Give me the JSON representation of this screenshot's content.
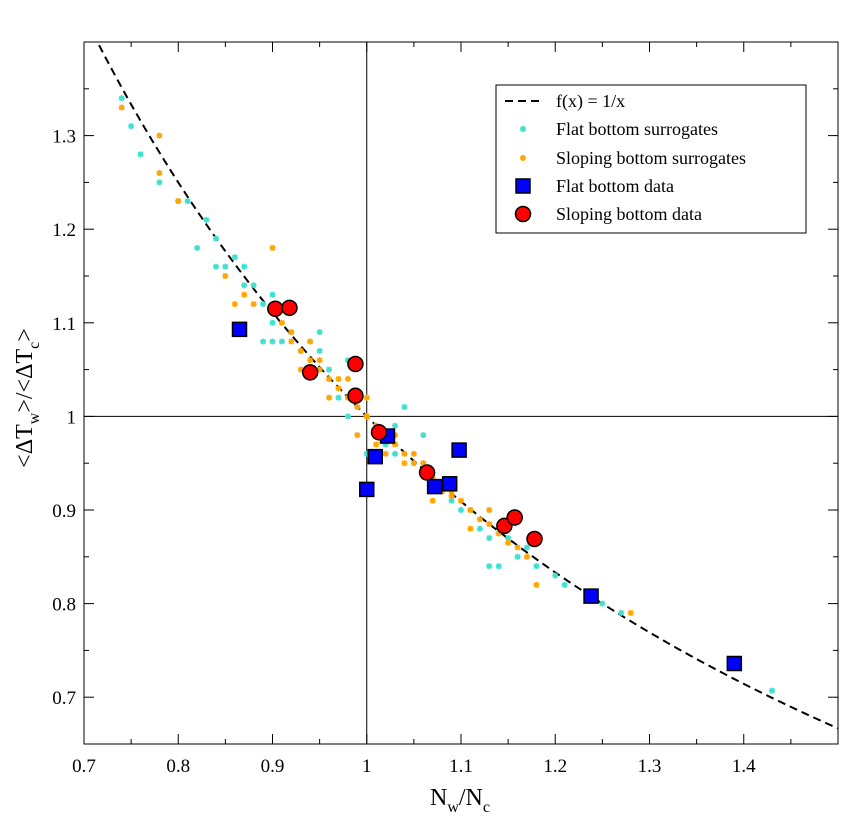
{
  "chart_data": {
    "type": "scatter",
    "title": "",
    "xlabel": {
      "main": "N",
      "sub1": "w",
      "sep": "/N",
      "sub2": "c"
    },
    "ylabel": {
      "p1": "<ΔT",
      "s1": "w",
      "p2": ">/<ΔT",
      "s2": "c",
      "p3": ">"
    },
    "xlim": [
      0.7,
      1.5
    ],
    "ylim": [
      0.65,
      1.4
    ],
    "xticks": [
      0.7,
      0.8,
      0.9,
      1,
      1.1,
      1.2,
      1.3,
      1.4
    ],
    "xtick_labels": [
      "0.7",
      "0.8",
      "0.9",
      "1",
      "1.1",
      "1.2",
      "1.3",
      "1.4"
    ],
    "yticks": [
      0.7,
      0.8,
      0.9,
      1,
      1.1,
      1.2,
      1.3
    ],
    "ytick_labels": [
      "0.7",
      "0.8",
      "0.9",
      "1",
      "1.1",
      "1.2",
      "1.3"
    ],
    "reference_lines": {
      "x": 1,
      "y": 1
    },
    "legend_position": "top-right",
    "colors": {
      "curve": "#000000",
      "flat_surrogates": "#40e0d0",
      "sloping_surrogates": "#ffa500",
      "flat_data": "#0000ff",
      "sloping_data": "#ff0000"
    },
    "series": [
      {
        "name": "f(x) = 1/x",
        "kind": "curve",
        "function": "1/x",
        "x_range": [
          0.7,
          1.5
        ]
      },
      {
        "name": "Flat bottom surrogates",
        "kind": "star-small",
        "points": [
          [
            0.74,
            1.34
          ],
          [
            0.75,
            1.31
          ],
          [
            0.76,
            1.28
          ],
          [
            0.78,
            1.25
          ],
          [
            0.8,
            1.23
          ],
          [
            0.81,
            1.23
          ],
          [
            0.82,
            1.18
          ],
          [
            0.83,
            1.21
          ],
          [
            0.84,
            1.19
          ],
          [
            0.85,
            1.16
          ],
          [
            0.86,
            1.17
          ],
          [
            0.87,
            1.16
          ],
          [
            0.87,
            1.14
          ],
          [
            0.88,
            1.14
          ],
          [
            0.89,
            1.12
          ],
          [
            0.9,
            1.1
          ],
          [
            0.9,
            1.08
          ],
          [
            0.91,
            1.08
          ],
          [
            0.92,
            1.09
          ],
          [
            0.93,
            1.07
          ],
          [
            0.94,
            1.08
          ],
          [
            0.95,
            1.07
          ],
          [
            0.96,
            1.05
          ],
          [
            0.97,
            1.02
          ],
          [
            0.98,
            1.0
          ],
          [
            0.99,
            1.02
          ],
          [
            1.0,
            1.0
          ],
          [
            1.01,
            0.99
          ],
          [
            1.02,
            0.97
          ],
          [
            1.03,
            0.96
          ],
          [
            1.04,
            1.01
          ],
          [
            1.05,
            0.95
          ],
          [
            1.06,
            0.94
          ],
          [
            1.07,
            0.93
          ],
          [
            1.08,
            0.92
          ],
          [
            1.09,
            0.91
          ],
          [
            1.1,
            0.9
          ],
          [
            1.11,
            0.9
          ],
          [
            1.12,
            0.88
          ],
          [
            1.13,
            0.87
          ],
          [
            1.14,
            0.84
          ],
          [
            1.15,
            0.87
          ],
          [
            1.16,
            0.85
          ],
          [
            1.18,
            0.84
          ],
          [
            1.2,
            0.83
          ],
          [
            1.21,
            0.82
          ],
          [
            1.25,
            0.8
          ],
          [
            1.27,
            0.79
          ],
          [
            1.43,
            0.707
          ],
          [
            0.9,
            1.13
          ],
          [
            0.95,
            1.09
          ],
          [
            1.0,
            0.96
          ],
          [
            1.06,
            0.98
          ],
          [
            1.13,
            0.84
          ],
          [
            0.84,
            1.16
          ],
          [
            0.89,
            1.08
          ],
          [
            0.98,
            1.06
          ],
          [
            1.03,
            0.99
          ],
          [
            1.09,
            0.93
          ],
          [
            1.17,
            0.86
          ]
        ]
      },
      {
        "name": "Sloping bottom surrogates",
        "kind": "star-small",
        "points": [
          [
            0.74,
            1.33
          ],
          [
            0.78,
            1.3
          ],
          [
            0.78,
            1.26
          ],
          [
            0.8,
            1.23
          ],
          [
            0.85,
            1.15
          ],
          [
            0.86,
            1.12
          ],
          [
            0.87,
            1.13
          ],
          [
            0.88,
            1.12
          ],
          [
            0.9,
            1.18
          ],
          [
            0.91,
            1.1
          ],
          [
            0.92,
            1.09
          ],
          [
            0.93,
            1.07
          ],
          [
            0.94,
            1.06
          ],
          [
            0.95,
            1.05
          ],
          [
            0.96,
            1.04
          ],
          [
            0.97,
            1.03
          ],
          [
            0.98,
            1.02
          ],
          [
            0.99,
            1.01
          ],
          [
            1.0,
            1.0
          ],
          [
            1.01,
            0.99
          ],
          [
            1.02,
            0.98
          ],
          [
            1.03,
            0.97
          ],
          [
            1.04,
            0.96
          ],
          [
            1.05,
            0.95
          ],
          [
            1.06,
            0.94
          ],
          [
            1.07,
            0.935
          ],
          [
            1.08,
            0.92
          ],
          [
            1.09,
            0.915
          ],
          [
            1.1,
            0.91
          ],
          [
            1.11,
            0.9
          ],
          [
            1.12,
            0.89
          ],
          [
            1.13,
            0.885
          ],
          [
            1.14,
            0.875
          ],
          [
            1.15,
            0.865
          ],
          [
            1.16,
            0.86
          ],
          [
            1.17,
            0.85
          ],
          [
            1.18,
            0.82
          ],
          [
            1.24,
            0.81
          ],
          [
            1.28,
            0.79
          ],
          [
            0.92,
            1.08
          ],
          [
            0.93,
            1.05
          ],
          [
            0.94,
            1.08
          ],
          [
            0.96,
            1.02
          ],
          [
            0.97,
            1.04
          ],
          [
            0.99,
            0.98
          ],
          [
            1.0,
            1.02
          ],
          [
            1.02,
            0.96
          ],
          [
            1.03,
            0.98
          ],
          [
            1.05,
            0.96
          ],
          [
            1.07,
            0.91
          ],
          [
            1.09,
            0.92
          ],
          [
            1.11,
            0.88
          ],
          [
            1.13,
            0.9
          ],
          [
            0.95,
            1.06
          ],
          [
            0.98,
            1.04
          ],
          [
            1.01,
            0.97
          ],
          [
            1.04,
            0.95
          ],
          [
            1.06,
            0.95
          ],
          [
            1.08,
            0.93
          ],
          [
            1.15,
            0.89
          ]
        ]
      },
      {
        "name": "Flat bottom data",
        "kind": "square",
        "points": [
          [
            0.865,
            1.093
          ],
          [
            1.0,
            0.922
          ],
          [
            1.009,
            0.957
          ],
          [
            1.022,
            0.979
          ],
          [
            1.072,
            0.925
          ],
          [
            1.088,
            0.928
          ],
          [
            1.098,
            0.964
          ],
          [
            1.238,
            0.808
          ],
          [
            1.39,
            0.736
          ]
        ]
      },
      {
        "name": "Sloping bottom data",
        "kind": "circle",
        "points": [
          [
            0.903,
            1.115
          ],
          [
            0.918,
            1.116
          ],
          [
            0.94,
            1.047
          ],
          [
            0.988,
            1.056
          ],
          [
            0.988,
            1.022
          ],
          [
            1.013,
            0.983
          ],
          [
            1.064,
            0.94
          ],
          [
            1.146,
            0.883
          ],
          [
            1.157,
            0.892
          ],
          [
            1.178,
            0.869
          ]
        ]
      }
    ]
  }
}
